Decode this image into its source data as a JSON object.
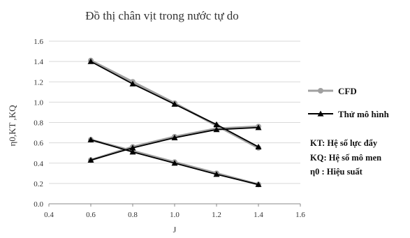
{
  "chart_data": {
    "type": "line",
    "title": "Đồ thị chân vịt trong nước tự do",
    "xlabel": "J",
    "ylabel": "η0,KT ,KQ",
    "xlim": [
      0.4,
      1.6
    ],
    "ylim": [
      0.0,
      1.6
    ],
    "x_ticks": [
      "0.4",
      "0.6",
      "0.8",
      "1.0",
      "1.2",
      "1.4",
      "1.6"
    ],
    "y_ticks": [
      "0.0",
      "0.2",
      "0.4",
      "0.6",
      "0.8",
      "1.0",
      "1.2",
      "1.4",
      "1.6"
    ],
    "grid": true,
    "legend_position": "right",
    "series": [
      {
        "name": "CFD",
        "marker": "circle",
        "color": "#a0a0a0",
        "curves": [
          {
            "x": [
              0.6,
              0.8,
              1.0,
              1.2,
              1.4
            ],
            "y": [
              1.41,
              1.2,
              0.99,
              0.77,
              0.55
            ]
          },
          {
            "x": [
              0.6,
              0.8,
              1.0,
              1.2,
              1.4
            ],
            "y": [
              0.63,
              0.52,
              0.41,
              0.3,
              0.19
            ]
          },
          {
            "x": [
              0.6,
              0.8,
              1.0,
              1.2,
              1.4
            ],
            "y": [
              0.43,
              0.56,
              0.66,
              0.74,
              0.76
            ]
          }
        ]
      },
      {
        "name": "Thử mô hình",
        "marker": "triangle",
        "color": "#000000",
        "curves": [
          {
            "x": [
              0.6,
              0.8,
              1.0,
              1.2,
              1.4
            ],
            "y": [
              1.4,
              1.18,
              0.98,
              0.78,
              0.56
            ]
          },
          {
            "x": [
              0.6,
              0.8,
              1.0,
              1.2,
              1.4
            ],
            "y": [
              0.63,
              0.51,
              0.4,
              0.29,
              0.19
            ]
          },
          {
            "x": [
              0.6,
              0.8,
              1.0,
              1.2,
              1.4
            ],
            "y": [
              0.43,
              0.55,
              0.65,
              0.73,
              0.75
            ]
          }
        ]
      }
    ],
    "annotations": [
      {
        "label": "KT: Hệ số lực đẩy"
      },
      {
        "label": "KQ: Hệ số mô men"
      },
      {
        "label": "η0 : Hiệu suất"
      }
    ]
  }
}
